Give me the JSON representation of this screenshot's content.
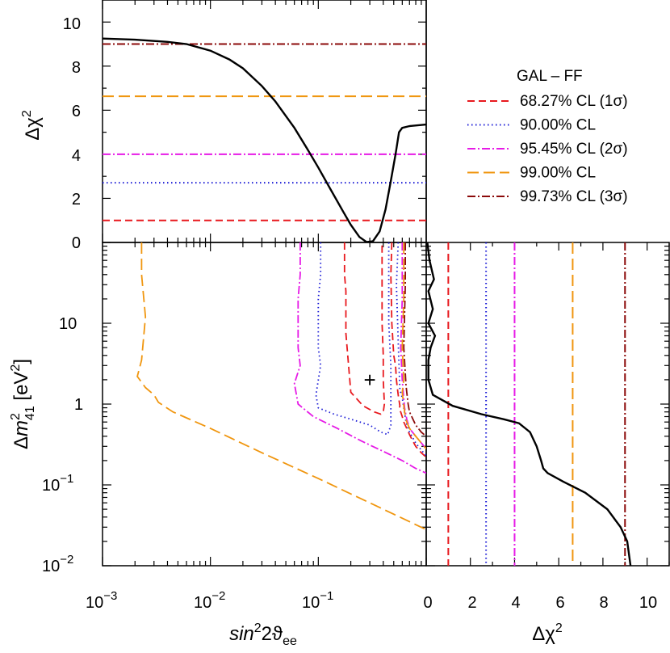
{
  "legend": {
    "title": "GAL – FF",
    "entries": [
      {
        "label": "68.27% CL (1σ)",
        "color": "#e8191e",
        "dash": "9,5",
        "delta_chi2": 1.0
      },
      {
        "label": "90.00% CL",
        "color": "#1b1bd6",
        "dash": "1.5,3.5",
        "delta_chi2": 2.71
      },
      {
        "label": "95.45% CL (2σ)",
        "color": "#e61be6",
        "dash": "10,3,2,3",
        "delta_chi2": 4.0
      },
      {
        "label": "99.00% CL",
        "color": "#f0960f",
        "dash": "14,6",
        "delta_chi2": 6.63
      },
      {
        "label": "99.73% CL (3σ)",
        "color": "#8b0a0a",
        "dash": "10,3,2,3",
        "delta_chi2": 9.0
      }
    ]
  },
  "axes": {
    "top_ylabel": "Δχ2",
    "bottom_xlabel": "sin22ϑee",
    "left_ylabel": "Δm241  [eV2]",
    "right_xlabel": "Δχ2",
    "top_yticks": [
      "0",
      "2",
      "4",
      "6",
      "8",
      "10"
    ],
    "right_xticks": [
      "0",
      "2",
      "4",
      "6",
      "8",
      "10"
    ],
    "left_xticks": [
      {
        "base": "10",
        "exp": "−3"
      },
      {
        "base": "10",
        "exp": "−2"
      },
      {
        "base": "10",
        "exp": "−1"
      }
    ],
    "left_yticks": [
      {
        "base": "10",
        "exp": "−2"
      },
      {
        "base": "10",
        "exp": "−1"
      },
      {
        "base": "1",
        "exp": ""
      },
      {
        "base": "10",
        "exp": ""
      }
    ]
  },
  "best_fit_marker": "+",
  "chart_data": [
    {
      "panel": "top",
      "type": "line",
      "xlabel": "sin²2ϑee",
      "ylabel": "Δχ²",
      "xscale": "log",
      "xlim": [
        0.001,
        1
      ],
      "ylim": [
        0,
        11
      ],
      "series": [
        {
          "x": [
            0.001,
            0.002,
            0.004,
            0.006,
            0.01,
            0.015,
            0.02,
            0.03,
            0.04,
            0.06,
            0.08,
            0.1,
            0.13,
            0.17,
            0.2,
            0.24,
            0.28,
            0.32,
            0.37,
            0.42,
            0.47,
            0.52,
            0.56,
            0.6,
            0.7,
            1.0
          ],
          "y": [
            9.25,
            9.2,
            9.1,
            9.0,
            8.7,
            8.3,
            7.9,
            7.1,
            6.4,
            5.2,
            4.2,
            3.4,
            2.4,
            1.4,
            0.8,
            0.25,
            0.02,
            0.05,
            0.5,
            1.5,
            2.8,
            4.0,
            5.0,
            5.2,
            5.28,
            5.35
          ]
        }
      ]
    },
    {
      "panel": "right",
      "type": "line",
      "xlabel": "Δχ²",
      "ylabel": "Δm²41 [eV²]",
      "yscale": "log",
      "xlim": [
        0,
        11
      ],
      "ylim": [
        0.01,
        100
      ],
      "series": [
        {
          "x": [
            0.05,
            0.15,
            0.35,
            0.1,
            0.3,
            0.1,
            0.4,
            0.2,
            0.1,
            0.1,
            0.3,
            1.2,
            2.5,
            3.5,
            4.2,
            4.7,
            5.0,
            5.2,
            5.3,
            5.5,
            6.2,
            7.2,
            8.2,
            8.8,
            9.1,
            9.25
          ],
          "y": [
            100,
            60,
            35,
            25,
            15,
            10,
            7,
            5,
            3.5,
            2.0,
            1.3,
            0.95,
            0.75,
            0.65,
            0.58,
            0.45,
            0.3,
            0.2,
            0.16,
            0.14,
            0.11,
            0.08,
            0.05,
            0.03,
            0.02,
            0.01
          ]
        }
      ]
    },
    {
      "panel": "main",
      "type": "line",
      "xlabel": "sin²2ϑee",
      "ylabel": "Δm²41 [eV²]",
      "xscale": "log",
      "yscale": "log",
      "xlim": [
        0.001,
        1
      ],
      "ylim": [
        0.01,
        100
      ],
      "best_fit": {
        "x": 0.3,
        "y": 2.0
      },
      "series": [
        {
          "name": "68.27% CL (1σ)",
          "segment": "main",
          "x": [
            0.175,
            0.175,
            0.18,
            0.18,
            0.2,
            0.26,
            0.33,
            0.38,
            0.4,
            0.41,
            0.4,
            0.4,
            0.39,
            0.39
          ],
          "y": [
            100,
            40,
            25,
            7.5,
            1.4,
            0.95,
            0.8,
            0.75,
            0.8,
            1.0,
            2.0,
            4.0,
            10,
            100
          ]
        },
        {
          "name": "68.27% CL (1σ)",
          "segment": "right",
          "x": [
            0.48,
            0.47,
            0.48,
            0.5,
            0.52,
            0.53,
            0.54,
            0.55,
            0.57,
            0.56,
            0.58,
            0.6,
            0.62,
            0.66,
            0.7,
            0.75,
            0.8,
            0.9,
            1.0
          ],
          "y": [
            100,
            40,
            10,
            4,
            3.0,
            2.0,
            1.6,
            1.3,
            0.95,
            0.85,
            0.8,
            0.7,
            0.6,
            0.5,
            0.42,
            0.35,
            0.3,
            0.25,
            0.22
          ]
        },
        {
          "name": "90.00% CL",
          "segment": "main",
          "x": [
            0.105,
            0.105,
            0.1,
            0.1,
            0.105,
            0.095,
            0.1,
            0.14,
            0.2,
            0.3,
            0.38,
            0.44,
            0.47,
            0.47,
            0.45,
            0.45
          ],
          "y": [
            100,
            40,
            20,
            5.0,
            3.0,
            1.3,
            0.9,
            0.75,
            0.65,
            0.55,
            0.45,
            0.42,
            0.55,
            3.0,
            10,
            100
          ]
        },
        {
          "name": "90.00% CL",
          "segment": "right",
          "x": [
            0.55,
            0.53,
            0.55,
            0.56,
            0.57,
            0.6,
            0.62,
            0.65,
            0.7,
            0.8,
            0.9,
            1.0
          ],
          "y": [
            100,
            30,
            6.0,
            3.0,
            1.5,
            1.2,
            0.9,
            0.6,
            0.45,
            0.33,
            0.27,
            0.23
          ]
        },
        {
          "name": "95.45% CL (2σ)",
          "segment": "main",
          "x": [
            0.068,
            0.068,
            0.065,
            0.065,
            0.068,
            0.06,
            0.065,
            0.09,
            0.15,
            0.25,
            0.4,
            0.6,
            0.8,
            1.0
          ],
          "y": [
            100,
            40,
            20,
            5.0,
            3.0,
            1.8,
            1.0,
            0.7,
            0.5,
            0.35,
            0.26,
            0.2,
            0.16,
            0.14
          ]
        },
        {
          "name": "95.45% CL (2σ)",
          "segment": "right",
          "x": [
            0.6,
            0.6,
            0.58,
            0.6,
            0.61,
            0.63,
            0.66,
            0.7,
            0.8,
            0.9,
            1.0
          ],
          "y": [
            100,
            20,
            5.0,
            2.0,
            1.5,
            0.9,
            0.65,
            0.5,
            0.4,
            0.33,
            0.28
          ]
        },
        {
          "name": "99.00% CL",
          "segment": "main",
          "x": [
            0.0023,
            0.0023,
            0.0025,
            0.0023,
            0.0021,
            0.0025,
            0.003,
            0.0033,
            0.0045,
            0.01,
            0.03,
            0.1,
            0.3,
            1.0
          ],
          "y": [
            100,
            40,
            12,
            3.5,
            2.2,
            1.6,
            1.3,
            1.05,
            0.8,
            0.5,
            0.25,
            0.12,
            0.06,
            0.028
          ]
        },
        {
          "name": "99.00% CL",
          "segment": "right",
          "x": [
            0.62,
            0.62,
            0.6,
            0.62,
            0.6,
            0.62,
            0.64,
            0.66,
            0.7,
            0.8,
            0.9,
            1.0
          ],
          "y": [
            100,
            20,
            5.0,
            2.0,
            1.4,
            0.95,
            0.7,
            0.6,
            0.5,
            0.4,
            0.33,
            0.28
          ]
        },
        {
          "name": "99.73% CL (3σ)",
          "segment": "right",
          "x": [
            0.64,
            0.64,
            0.62,
            0.65,
            0.66,
            0.68,
            0.7,
            0.8,
            0.9,
            1.0
          ],
          "y": [
            100,
            30,
            5.0,
            1.7,
            1.4,
            1.0,
            0.8,
            0.55,
            0.45,
            0.4
          ]
        }
      ]
    }
  ]
}
